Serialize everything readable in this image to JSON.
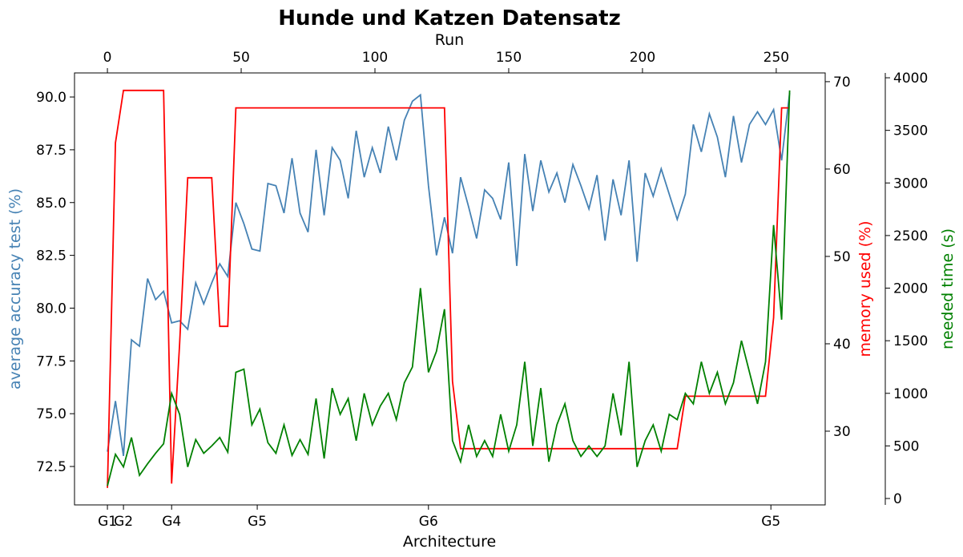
{
  "chart_data": {
    "type": "line",
    "title": "Hunde und Katzen Datensatz",
    "xlabel": "Architecture",
    "x2label": "Run",
    "ylabel": "average accuracy test (%)",
    "y2label": "memory used (%)",
    "y3label": "needed time (s)",
    "xlim": [
      -12.3,
      268.3
    ],
    "xticks": [
      {
        "value": 0,
        "label": "G1"
      },
      {
        "value": 6,
        "label": "G2"
      },
      {
        "value": 24,
        "label": "G4"
      },
      {
        "value": 56,
        "label": "G5"
      },
      {
        "value": 120,
        "label": "G6"
      },
      {
        "value": 248,
        "label": "G5"
      }
    ],
    "x2ticks": [
      0,
      50,
      100,
      150,
      200,
      250
    ],
    "ylim": [
      70.68,
      91.14
    ],
    "yticks": [
      {
        "value": 72.5,
        "label": "72.5"
      },
      {
        "value": 75,
        "label": "75.0"
      },
      {
        "value": 77.5,
        "label": "77.5"
      },
      {
        "value": 80,
        "label": "80.0"
      },
      {
        "value": 82.5,
        "label": "82.5"
      },
      {
        "value": 85,
        "label": "85.0"
      },
      {
        "value": 87.5,
        "label": "87.5"
      },
      {
        "value": 90,
        "label": "90.0"
      }
    ],
    "y2lim": [
      21.56,
      71.0
    ],
    "y2ticks": [
      30,
      40,
      50,
      60,
      70
    ],
    "y3lim": [
      -61,
      4046
    ],
    "y3ticks": [
      0,
      500,
      1000,
      1500,
      2000,
      2500,
      3000,
      3500,
      4000
    ],
    "x": [
      0,
      3,
      6,
      9,
      12,
      15,
      18,
      21,
      24,
      27,
      30,
      33,
      36,
      39,
      42,
      45,
      48,
      51,
      54,
      57,
      60,
      63,
      66,
      69,
      72,
      75,
      78,
      81,
      84,
      87,
      90,
      93,
      96,
      99,
      102,
      105,
      108,
      111,
      114,
      117,
      120,
      123,
      126,
      129,
      132,
      135,
      138,
      141,
      144,
      147,
      150,
      153,
      156,
      159,
      162,
      165,
      168,
      171,
      174,
      177,
      180,
      183,
      186,
      189,
      192,
      195,
      198,
      201,
      204,
      207,
      210,
      213,
      216,
      219,
      222,
      225,
      228,
      231,
      234,
      237,
      240,
      243,
      246,
      249,
      252,
      255
    ],
    "series": [
      {
        "name": "accuracy",
        "color": "#4682b4",
        "axis": "y",
        "values": [
          73.2,
          75.6,
          73.0,
          78.5,
          78.2,
          81.4,
          80.4,
          80.8,
          79.3,
          79.4,
          79.0,
          81.2,
          80.2,
          81.2,
          82.1,
          81.5,
          85.0,
          84.0,
          82.8,
          82.7,
          85.9,
          85.8,
          84.5,
          87.1,
          84.5,
          83.6,
          87.5,
          84.4,
          87.6,
          87.0,
          85.2,
          88.4,
          86.2,
          87.6,
          86.4,
          88.6,
          87.0,
          88.9,
          89.8,
          90.1,
          85.8,
          82.5,
          84.3,
          82.6,
          86.2,
          84.8,
          83.3,
          85.6,
          85.2,
          84.2,
          86.9,
          82.0,
          87.3,
          84.6,
          87.0,
          85.5,
          86.4,
          85.0,
          86.8,
          85.8,
          84.7,
          86.3,
          83.2,
          86.1,
          84.4,
          87.0,
          82.2,
          86.4,
          85.3,
          86.6,
          85.4,
          84.2,
          85.4,
          88.7,
          87.4,
          89.2,
          88.1,
          86.2,
          89.1,
          86.9,
          88.7,
          89.3,
          88.7,
          89.4,
          87.0,
          90.2
        ]
      },
      {
        "name": "memory",
        "color": "#ff0000",
        "axis": "y2",
        "values": [
          23.5,
          63,
          69,
          69,
          69,
          69,
          69,
          69,
          24,
          40,
          59,
          59,
          59,
          59,
          42,
          42,
          67,
          67,
          67,
          67,
          67,
          67,
          67,
          67,
          67,
          67,
          67,
          67,
          67,
          67,
          67,
          67,
          67,
          67,
          67,
          67,
          67,
          67,
          67,
          67,
          67,
          67,
          67,
          35.7,
          28,
          28,
          28,
          28,
          28,
          28,
          28,
          28,
          28,
          28,
          28,
          28,
          28,
          28,
          28,
          28,
          28,
          28,
          28,
          28,
          28,
          28,
          28,
          28,
          28,
          28,
          28,
          28,
          34,
          34,
          34,
          34,
          34,
          34,
          34,
          34,
          34,
          34,
          34,
          43,
          67,
          67
        ]
      },
      {
        "name": "time",
        "color": "#008000",
        "axis": "y3",
        "values": [
          120,
          420,
          300,
          580,
          220,
          330,
          430,
          520,
          1000,
          800,
          300,
          560,
          430,
          500,
          580,
          440,
          1200,
          1230,
          700,
          850,
          530,
          430,
          700,
          410,
          560,
          420,
          950,
          380,
          1050,
          800,
          950,
          550,
          1000,
          700,
          880,
          1000,
          750,
          1100,
          1250,
          2000,
          1200,
          1400,
          1800,
          550,
          350,
          700,
          400,
          550,
          400,
          800,
          450,
          700,
          1300,
          500,
          1050,
          350,
          700,
          900,
          550,
          400,
          500,
          400,
          500,
          1000,
          600,
          1300,
          300,
          550,
          700,
          450,
          800,
          750,
          1000,
          900,
          1300,
          1000,
          1200,
          900,
          1100,
          1500,
          1200,
          900,
          1300,
          2600,
          1700,
          3880
        ]
      }
    ]
  }
}
